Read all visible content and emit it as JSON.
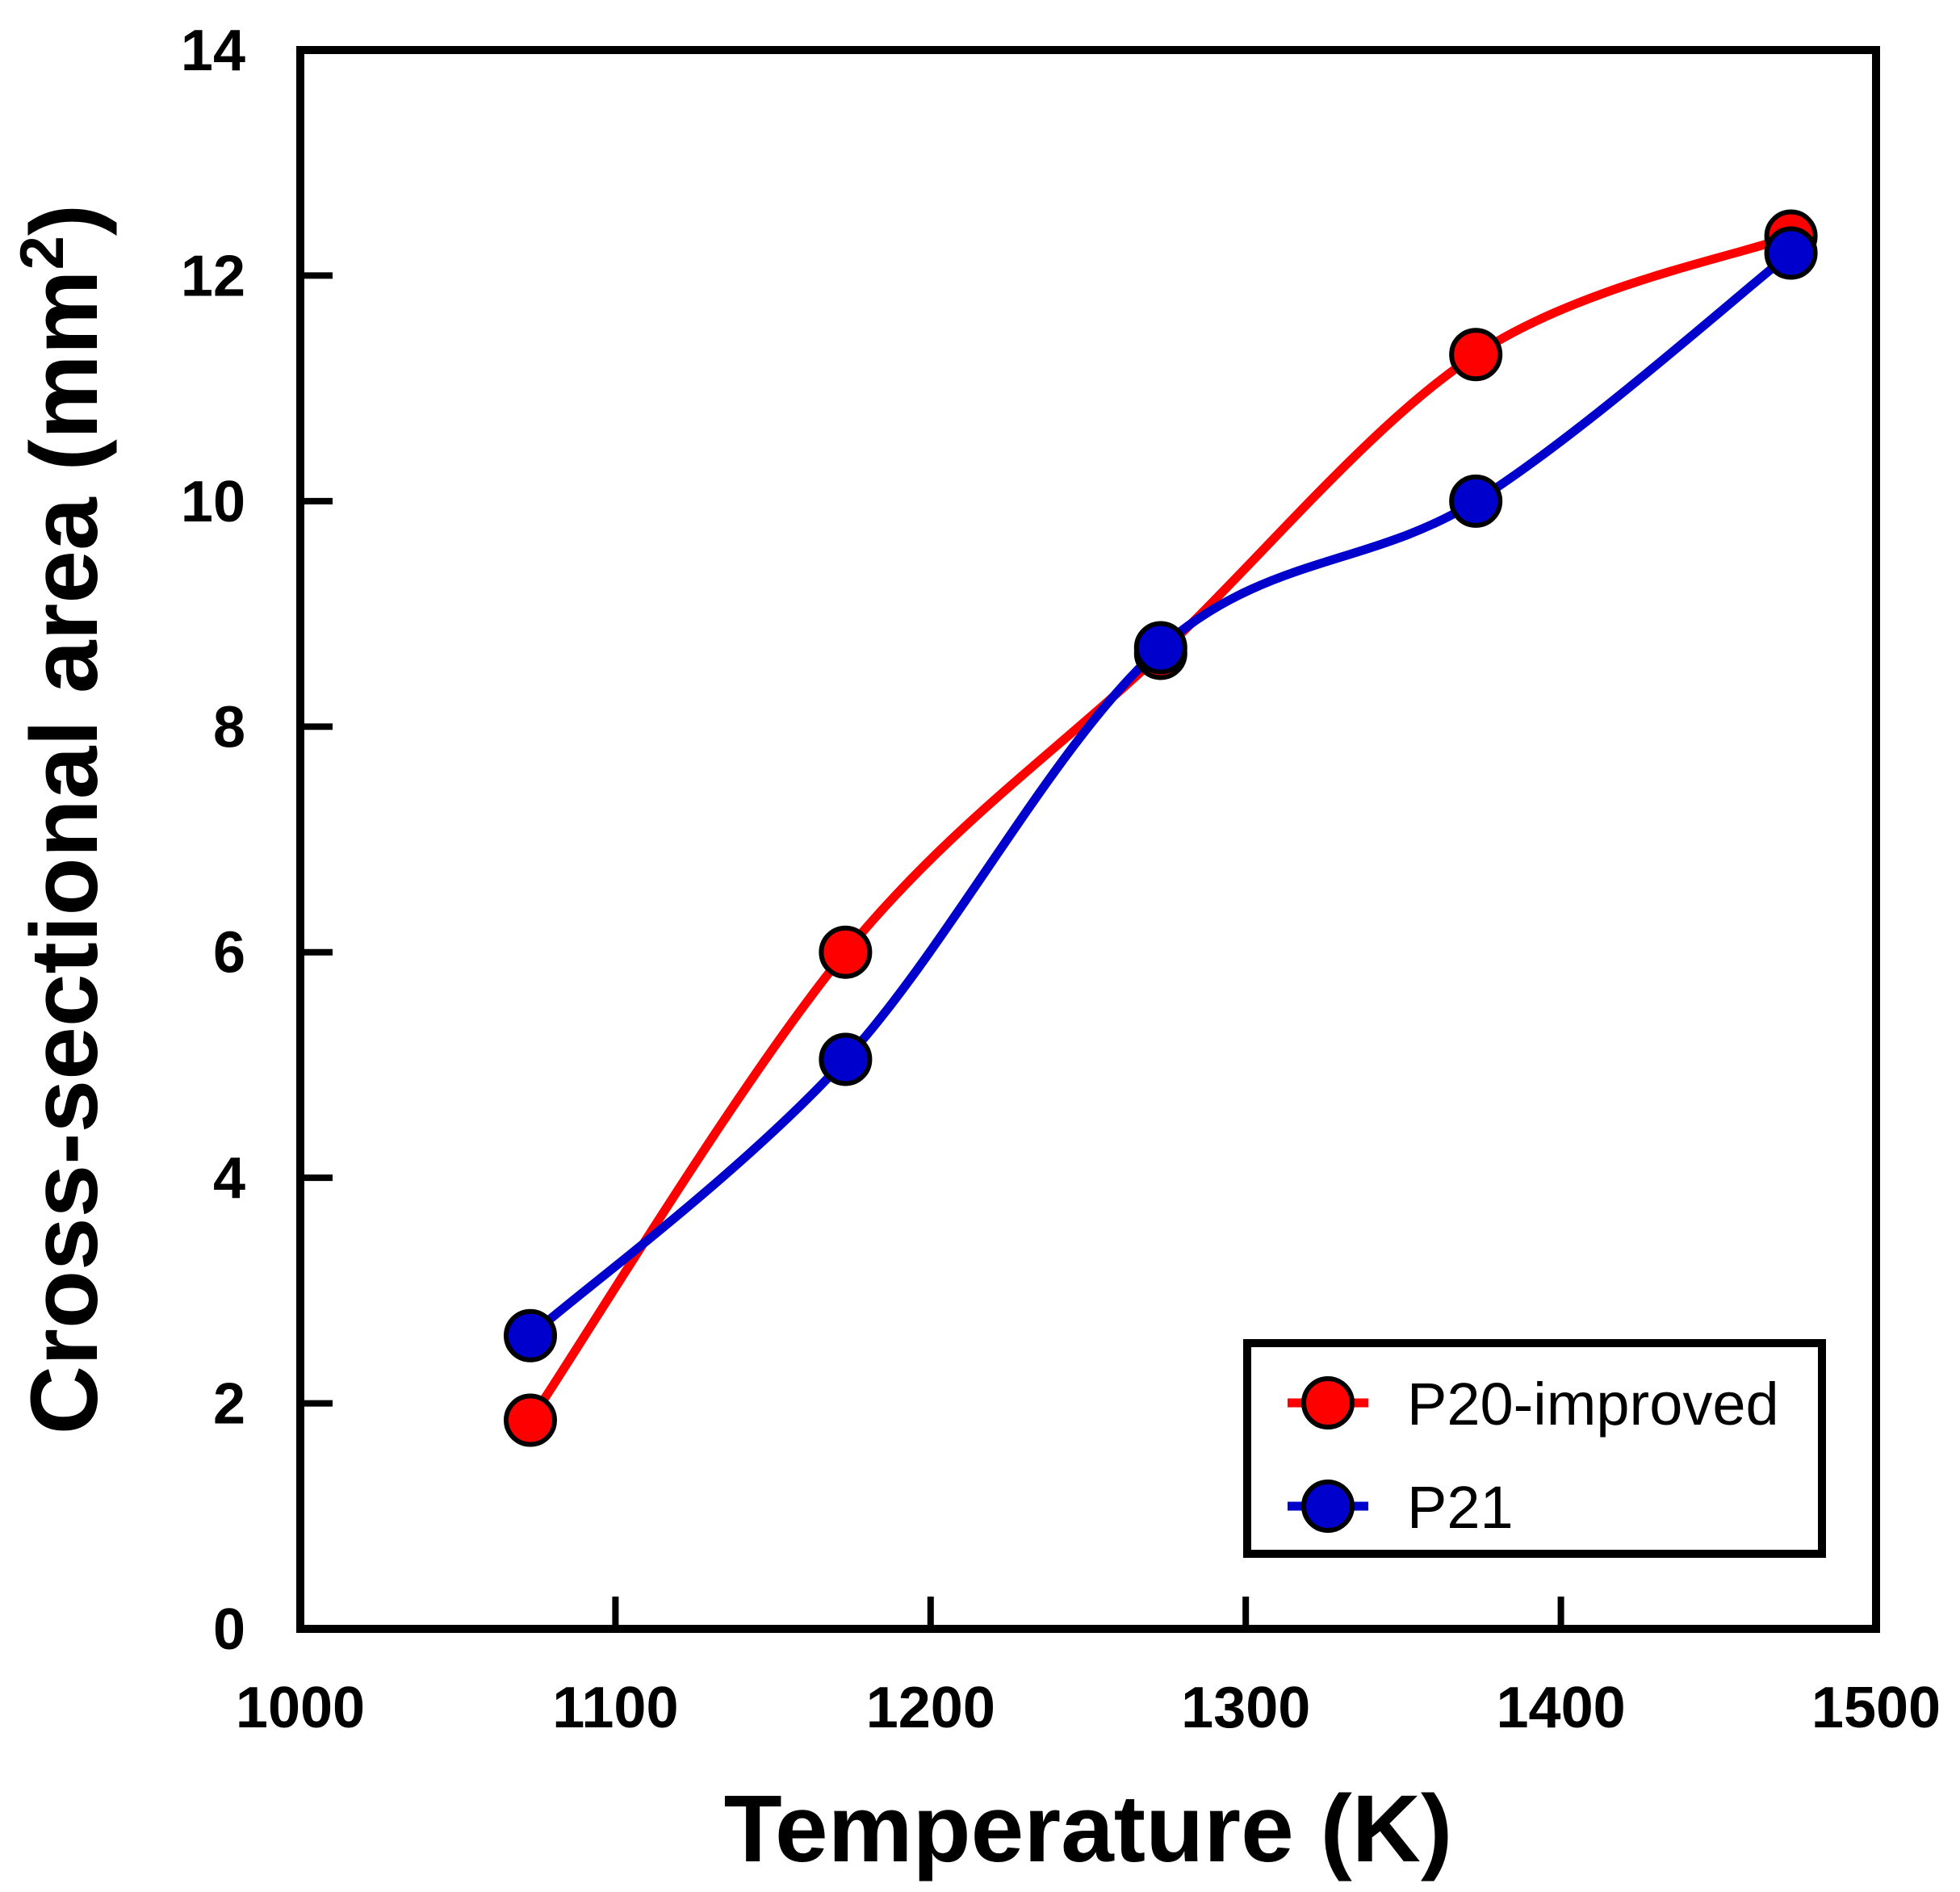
{
  "chart_data": {
    "type": "line",
    "title": "",
    "xlabel": "Temperature (K)",
    "ylabel_main": "Cross-sectional area (mm",
    "ylabel_sup": "2",
    "ylabel_close": ")",
    "xlim": [
      1000,
      1500
    ],
    "ylim": [
      0,
      14
    ],
    "xticks": [
      1000,
      1100,
      1200,
      1300,
      1400,
      1500
    ],
    "yticks": [
      0,
      2,
      4,
      6,
      8,
      10,
      12,
      14
    ],
    "grid": false,
    "legend_position": "bottom-right",
    "series": [
      {
        "name": "P20-improved",
        "color": "#ff0000",
        "x": [
          1073,
          1173,
          1273,
          1373,
          1473
        ],
        "y": [
          1.85,
          6.0,
          8.65,
          11.3,
          12.35
        ]
      },
      {
        "name": "P21",
        "color": "#0000cc",
        "x": [
          1073,
          1173,
          1273,
          1373,
          1473
        ],
        "y": [
          2.6,
          5.05,
          8.7,
          10.0,
          12.2
        ]
      }
    ]
  }
}
